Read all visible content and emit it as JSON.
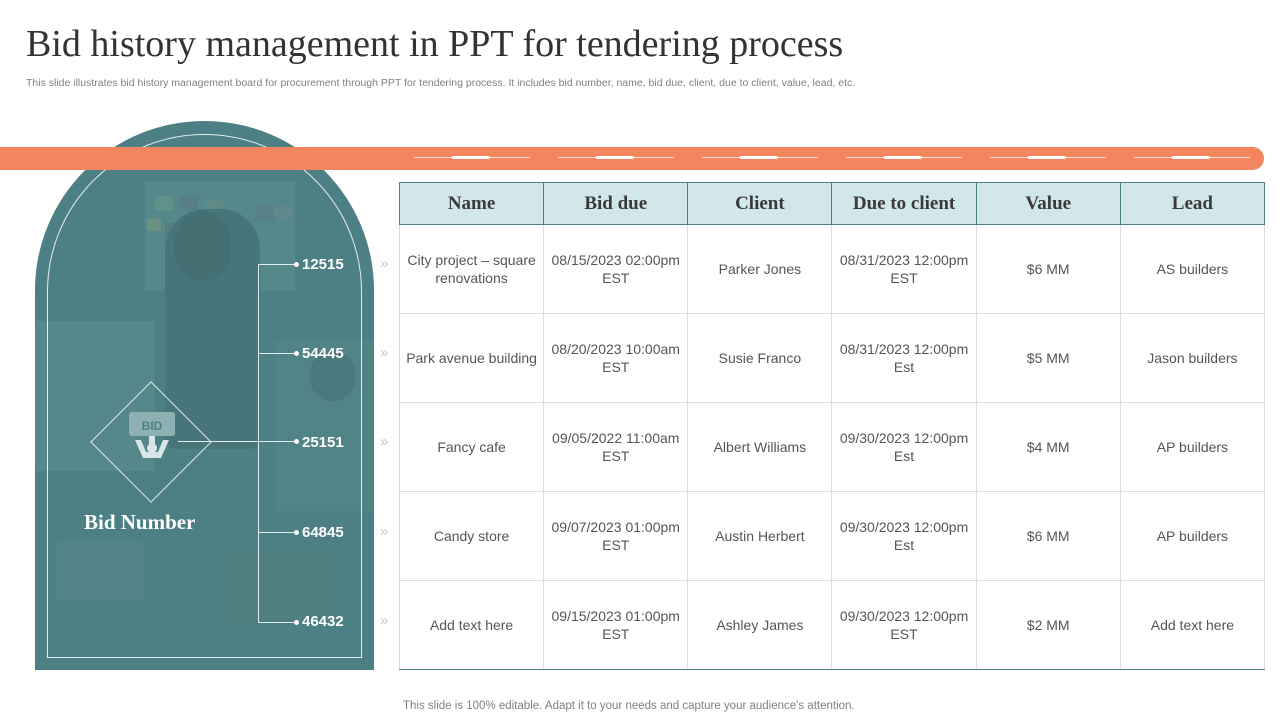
{
  "title": "Bid history management in PPT for tendering process",
  "subtitle": "This slide illustrates bid history management board for procurement through PPT for tendering process. It includes bid number, name, bid due, client, due to client, value, lead, etc.",
  "colors": {
    "accent": "#f3855f",
    "panel": "#4e8085",
    "header_bg": "#d2e7ea"
  },
  "panel": {
    "icon_text": "BID",
    "label": "Bid Number",
    "bid_numbers": [
      "12515",
      "54445",
      "25151",
      "64845",
      "46432"
    ]
  },
  "table": {
    "headers": [
      "Name",
      "Bid due",
      "Client",
      "Due to client",
      "Value",
      "Lead"
    ],
    "rows": [
      [
        "City project – square renovations",
        "08/15/2023 02:00pm EST",
        "Parker Jones",
        "08/31/2023 12:00pm EST",
        "$6 MM",
        "AS builders"
      ],
      [
        "Park avenue building",
        "08/20/2023 10:00am EST",
        "Susie Franco",
        "08/31/2023 12:00pm Est",
        "$5 MM",
        "Jason builders"
      ],
      [
        "Fancy cafe",
        "09/05/2022 11:00am EST",
        "Albert Williams",
        "09/30/2023 12:00pm Est",
        "$4 MM",
        "AP builders"
      ],
      [
        "Candy store",
        "09/07/2023 01:00pm EST",
        "Austin Herbert",
        "09/30/2023 12:00pm Est",
        "$6 MM",
        "AP builders"
      ],
      [
        "Add text here",
        "09/15/2023 01:00pm EST",
        "Ashley James",
        "09/30/2023 12:00pm EST",
        "$2 MM",
        "Add text here"
      ]
    ]
  },
  "footer": "This slide is 100% editable. Adapt it to your needs and capture your audience's attention."
}
